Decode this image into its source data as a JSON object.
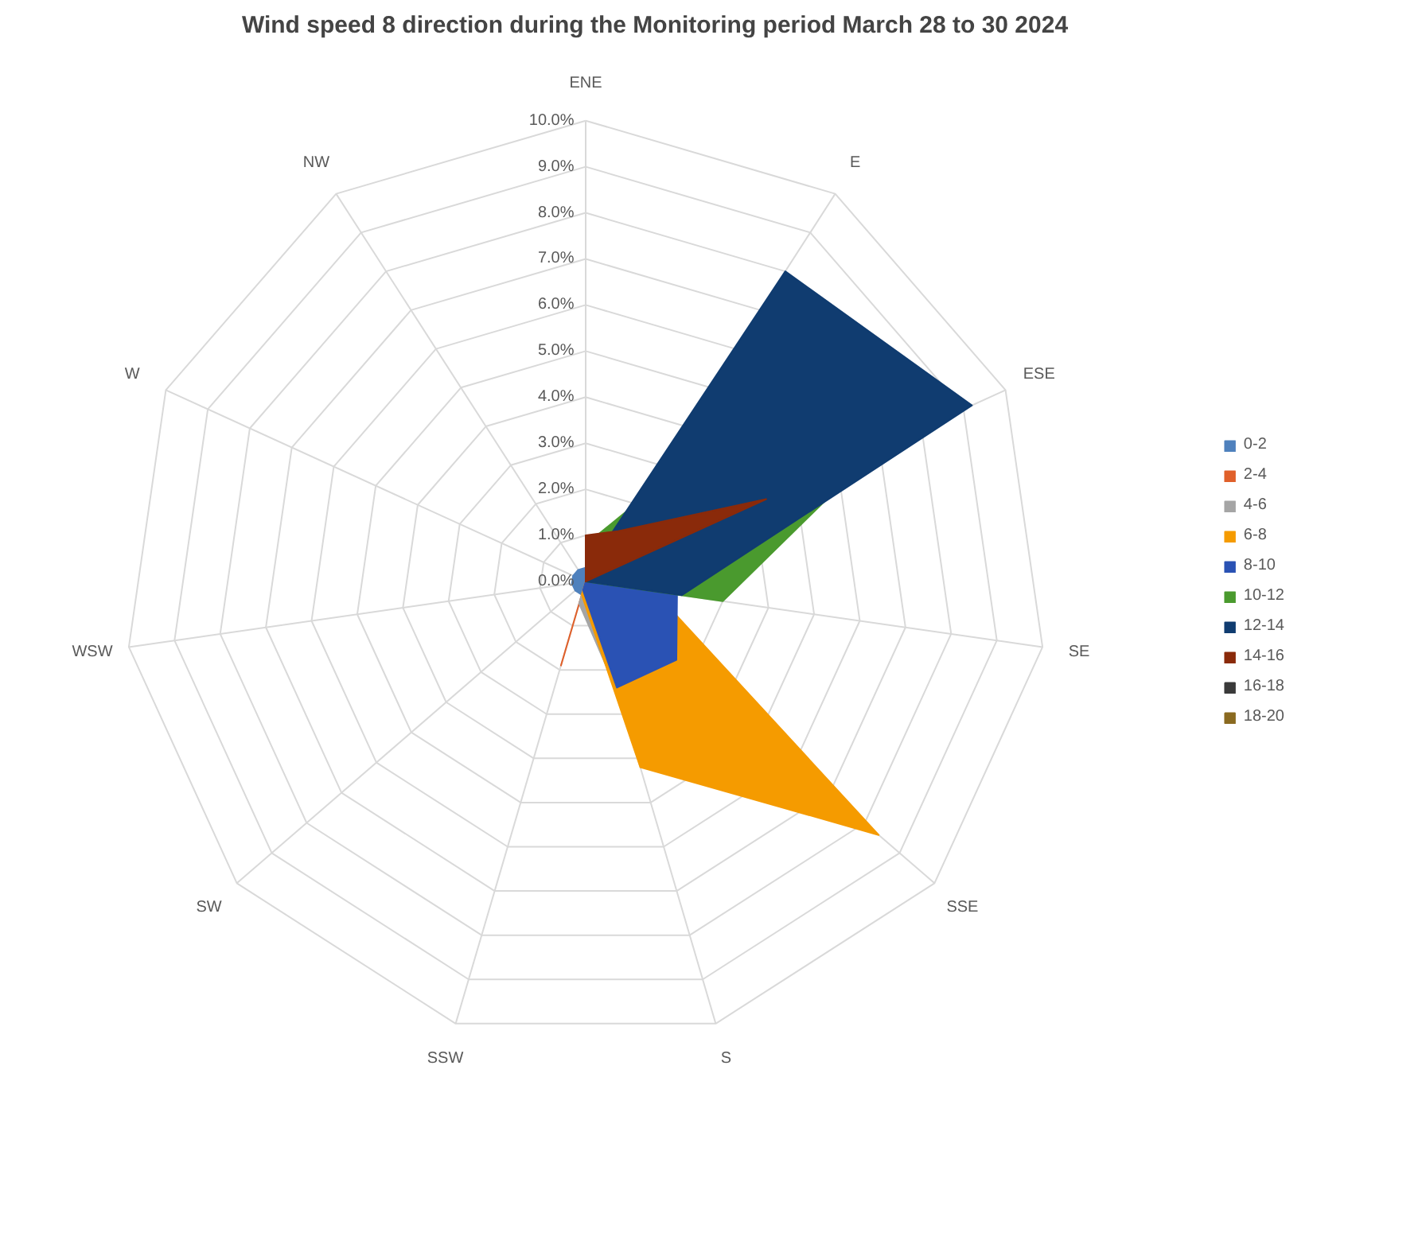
{
  "chart_data": {
    "type": "radar",
    "title": "Wind speed 8 direction during the Monitoring period March 28 to 30 2024",
    "categories": [
      "ENE",
      "E",
      "ESE",
      "SE",
      "SSE",
      "S",
      "SSW",
      "SW",
      "WSW",
      "W",
      "NW"
    ],
    "ylim": [
      0,
      10
    ],
    "yticks": [
      {
        "value": 0,
        "label": "0.0%"
      },
      {
        "value": 1,
        "label": "1.0%"
      },
      {
        "value": 2,
        "label": "2.0%"
      },
      {
        "value": 3,
        "label": "3.0%"
      },
      {
        "value": 4,
        "label": "4.0%"
      },
      {
        "value": 5,
        "label": "5.0%"
      },
      {
        "value": 6,
        "label": "6.0%"
      },
      {
        "value": 7,
        "label": "7.0%"
      },
      {
        "value": 8,
        "label": "8.0%"
      },
      {
        "value": 9,
        "label": "9.0%"
      },
      {
        "value": 10,
        "label": "10.0%"
      }
    ],
    "grid": true,
    "legend": "right",
    "marker": "none",
    "series": [
      {
        "name": "0-2",
        "color": "#4f81bd",
        "values": [
          0.3,
          0.3,
          0.3,
          0.3,
          0.3,
          0.3,
          0.3,
          0.3,
          0.3,
          0.3,
          0.3
        ]
      },
      {
        "name": "2-4",
        "color": "#e0602a",
        "values": [
          0,
          0,
          0,
          0,
          0,
          0,
          1.9,
          0,
          0,
          0,
          0
        ]
      },
      {
        "name": "4-6",
        "color": "#a5a5a5",
        "values": [
          0,
          0,
          0,
          0,
          0,
          2.6,
          0.5,
          0,
          0,
          0,
          0
        ]
      },
      {
        "name": "6-8",
        "color": "#f59b00",
        "values": [
          0,
          0,
          0,
          1.5,
          8.4,
          4.2,
          0.3,
          0,
          0,
          0,
          0
        ]
      },
      {
        "name": "8-10",
        "color": "#2a52b4",
        "values": [
          0,
          0,
          0,
          2.0,
          2.6,
          2.4,
          0.2,
          0,
          0,
          0,
          0
        ]
      },
      {
        "name": "10-12",
        "color": "#4a9a2e",
        "values": [
          0.8,
          2.0,
          7.0,
          3.0,
          0,
          0,
          0,
          0,
          0,
          0,
          0
        ]
      },
      {
        "name": "12-14",
        "color": "#103c70",
        "values": [
          0.2,
          8.0,
          9.2,
          2.1,
          0,
          0,
          0,
          0,
          0,
          0,
          0
        ]
      },
      {
        "name": "14-16",
        "color": "#8a2a0a",
        "values": [
          1.0,
          1.3,
          4.3,
          0,
          0,
          0,
          0,
          0,
          0,
          0,
          0
        ]
      },
      {
        "name": "16-18",
        "color": "#3a3a3a",
        "values": [
          null,
          null,
          null,
          null,
          null,
          null,
          null,
          null,
          null,
          null,
          null
        ]
      },
      {
        "name": "18-20",
        "color": "#8a6a20",
        "values": [
          null,
          null,
          null,
          null,
          null,
          null,
          null,
          null,
          null,
          null,
          null
        ]
      }
    ]
  }
}
